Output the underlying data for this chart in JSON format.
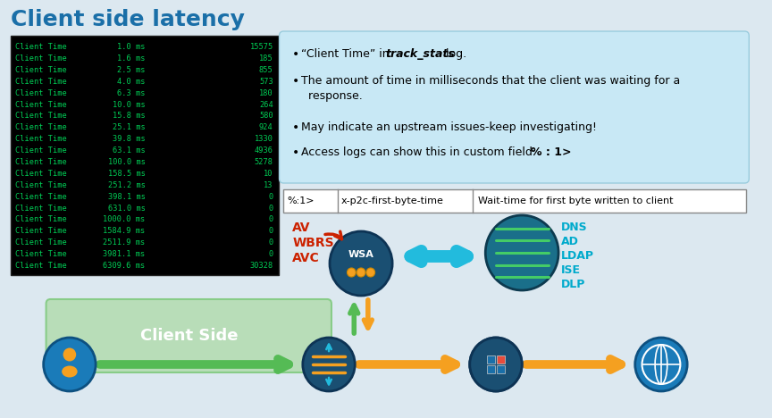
{
  "title": "Client side latency",
  "title_color": "#1a6fa8",
  "bg_color": "#dce8f0",
  "terminal_lines": [
    [
      "Client Time",
      "1.0 ms",
      "15575"
    ],
    [
      "Client Time",
      "1.6 ms",
      "185"
    ],
    [
      "Client Time",
      "2.5 ms",
      "855"
    ],
    [
      "Client Time",
      "4.0 ms",
      "573"
    ],
    [
      "Client Time",
      "6.3 ms",
      "180"
    ],
    [
      "Client Time",
      "10.0 ms",
      "264"
    ],
    [
      "Client Time",
      "15.8 ms",
      "580"
    ],
    [
      "Client Time",
      "25.1 ms",
      "924"
    ],
    [
      "Client Time",
      "39.8 ms",
      "1330"
    ],
    [
      "Client Time",
      "63.1 ms",
      "4936"
    ],
    [
      "Client Time",
      "100.0 ms",
      "5278"
    ],
    [
      "Client Time",
      "158.5 ms",
      "10"
    ],
    [
      "Client Time",
      "251.2 ms",
      "13"
    ],
    [
      "Client Time",
      "398.1 ms",
      "0"
    ],
    [
      "Client Time",
      "631.0 ms",
      "0"
    ],
    [
      "Client Time",
      "1000.0 ms",
      "0"
    ],
    [
      "Client Time",
      "1584.9 ms",
      "0"
    ],
    [
      "Client Time",
      "2511.9 ms",
      "0"
    ],
    [
      "Client Time",
      "3981.1 ms",
      "0"
    ],
    [
      "Client Time",
      "6309.6 ms",
      "30328"
    ]
  ],
  "bullet_box_color": "#c8e8f5",
  "table_row": [
    "%:1>",
    "x-p2c-first-byte-time",
    "Wait-time for first byte written to client"
  ],
  "av_labels": [
    "AV",
    "WBRS",
    "AVC"
  ],
  "av_color": "#cc2200",
  "dns_labels": [
    "DNS",
    "AD",
    "LDAP",
    "ISE",
    "DLP"
  ],
  "dns_color": "#00aacc",
  "client_side_label": "Client Side",
  "client_side_box_color": "#b8ddb8",
  "green_arrow_color": "#55bb55",
  "orange_arrow_color": "#f5a020",
  "blue_arrow_color": "#22bbdd",
  "wsa_color": "#1a4f72",
  "person_color": "#1a7bb9",
  "teal_color": "#1a6f8a",
  "globe_color": "#1a7bb9",
  "tbl_cols": [
    62,
    155,
    315
  ]
}
